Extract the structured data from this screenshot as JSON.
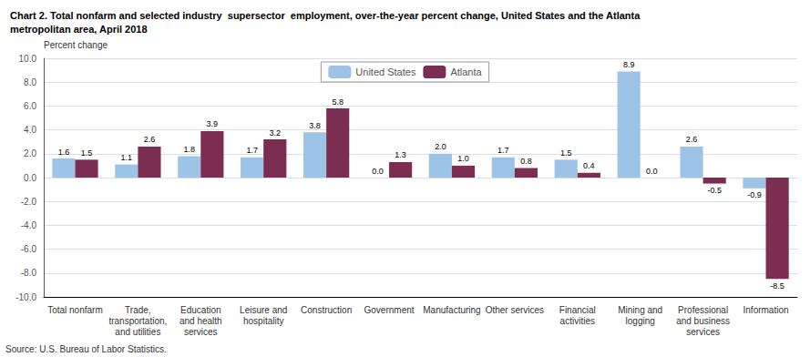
{
  "chart_data": {
    "type": "bar",
    "title": "Chart 2. Total nonfarm and selected industry  supersector  employment, over-the-year percent change, United States and the Atlanta\nmetropolitan area, April 2018",
    "ylabel": "Percent change",
    "annotations": [
      "Source: U.S. Bureau of Labor Statistics."
    ],
    "categories": [
      "Total nonfarm",
      "Trade,\ntransportation,\nand utilities",
      "Education\nand health\nservices",
      "Leisure and\nhospitality",
      "Construction",
      "Government",
      "Manufacturing",
      "Other services",
      "Financial\nactivities",
      "Mining and\nlogging",
      "Professional\nand business\nservices",
      "Information"
    ],
    "series": [
      {
        "name": "United States",
        "color": "#9DC3E6",
        "values": [
          1.6,
          1.1,
          1.8,
          1.7,
          3.8,
          0.0,
          2.0,
          1.7,
          1.5,
          8.9,
          2.6,
          -0.9
        ],
        "value_labels": [
          "1.6",
          "1.1",
          "1.8",
          "1.7",
          "3.8",
          "0.0",
          "2.0",
          "1.7",
          "1.5",
          "8.9",
          "2.6",
          "-0.9"
        ]
      },
      {
        "name": "Atlanta",
        "color": "#7B2D52",
        "values": [
          1.5,
          2.6,
          3.9,
          3.2,
          5.8,
          1.3,
          1.0,
          0.8,
          0.4,
          0.0,
          -0.5,
          -8.5
        ],
        "value_labels": [
          "1.5",
          "2.6",
          "3.9",
          "3.2",
          "5.8",
          "1.3",
          "1.0",
          "0.8",
          "0.4",
          "0.0",
          "-0.5",
          "-8.5"
        ]
      }
    ],
    "ylim": [
      -10.0,
      10.0
    ],
    "yticks": [
      {
        "value": -10,
        "label": "-10.0"
      },
      {
        "value": -8,
        "label": "-8.0"
      },
      {
        "value": -6,
        "label": "-6.0"
      },
      {
        "value": -4,
        "label": "-4.0"
      },
      {
        "value": -2,
        "label": "-2.0"
      },
      {
        "value": 0,
        "label": "0.0"
      },
      {
        "value": 2,
        "label": "2.0"
      },
      {
        "value": 4,
        "label": "4.0"
      },
      {
        "value": 6,
        "label": "6.0"
      },
      {
        "value": 8,
        "label": "8.0"
      },
      {
        "value": 10,
        "label": "10.0"
      }
    ],
    "grid": true,
    "legend": "top",
    "data_labels": true
  }
}
